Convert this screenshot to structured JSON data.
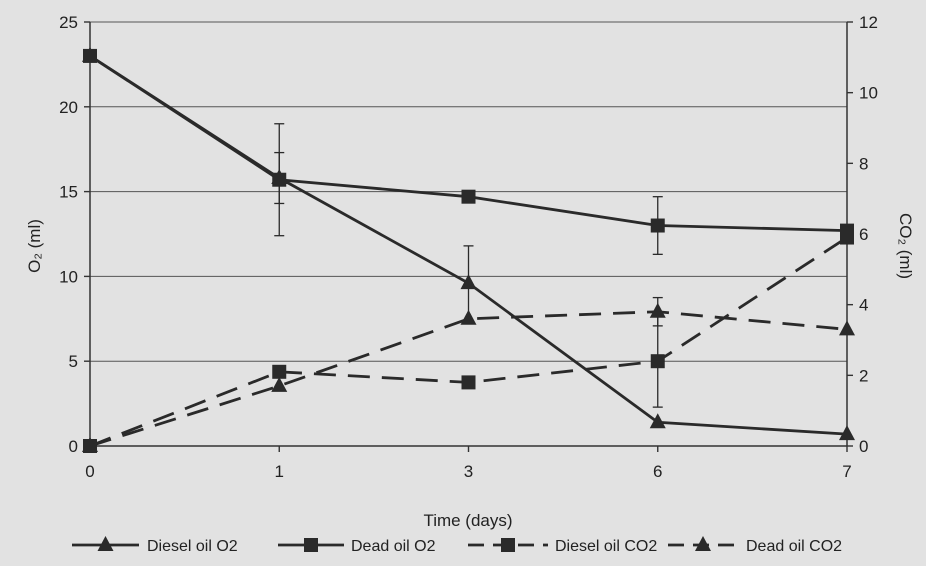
{
  "chart_data": {
    "type": "line",
    "title": "",
    "xlabel": "Time (days)",
    "ylabel_left": "O₂ (ml)",
    "ylabel_right": "CO₂ (ml)",
    "categories": [
      "0",
      "1",
      "3",
      "6",
      "7"
    ],
    "ylim_left": [
      0,
      25
    ],
    "yticks_left": [
      0,
      5,
      10,
      15,
      20,
      25
    ],
    "ylim_right": [
      0,
      12
    ],
    "yticks_right": [
      0,
      2,
      4,
      6,
      8,
      10,
      12
    ],
    "grid": "horizontal",
    "legend_position": "bottom",
    "series": [
      {
        "name": "Diesel oil O2",
        "axis": "left",
        "style": "solid",
        "marker": "triangle",
        "values": [
          23,
          15.8,
          9.6,
          1.4,
          0.7
        ],
        "error": [
          0,
          1.5,
          2.2,
          0,
          0
        ]
      },
      {
        "name": "Dead oil O2",
        "axis": "left",
        "style": "solid",
        "marker": "square",
        "values": [
          23,
          15.7,
          14.7,
          13.0,
          12.7
        ],
        "error": [
          0,
          3.3,
          0,
          1.7,
          0
        ]
      },
      {
        "name": "Diesel oil CO2",
        "axis": "right",
        "style": "dashed",
        "marker": "square",
        "values": [
          0,
          2.1,
          1.8,
          2.4,
          5.9
        ],
        "error": [
          0,
          0,
          0,
          1.3,
          0
        ]
      },
      {
        "name": "Dead oil CO2",
        "axis": "right",
        "style": "dashed",
        "marker": "triangle",
        "values": [
          0,
          1.7,
          3.6,
          3.8,
          3.3
        ],
        "error": [
          0,
          0,
          0,
          0.4,
          0
        ]
      }
    ]
  }
}
